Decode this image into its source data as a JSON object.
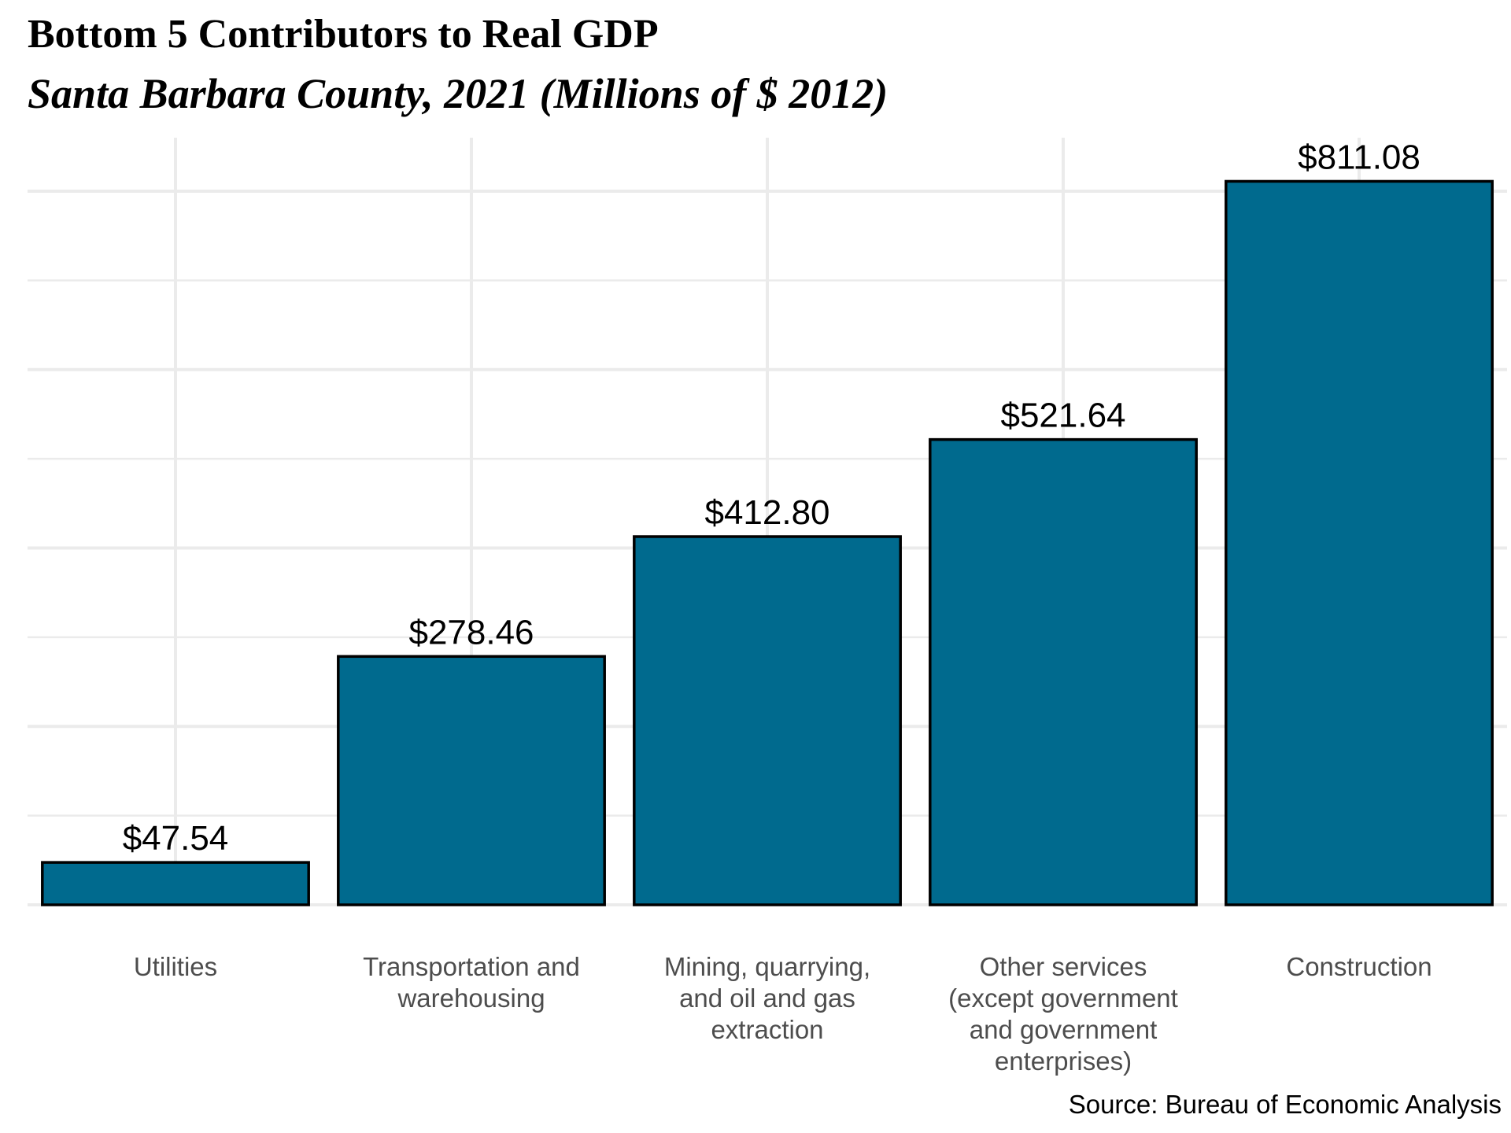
{
  "chart_data": {
    "type": "bar",
    "title": "Bottom 5 Contributors to Real GDP",
    "subtitle": "Santa Barbara County, 2021 (Millions of $ 2012)",
    "caption": "Source: Bureau of Economic Analysis",
    "categories": [
      [
        "Utilities"
      ],
      [
        "Transportation and",
        "warehousing"
      ],
      [
        "Mining, quarrying,",
        "and oil and gas",
        "extraction"
      ],
      [
        "Other services",
        "(except government",
        "and government",
        "enterprises)"
      ],
      [
        "Construction"
      ]
    ],
    "values": [
      47.54,
      278.46,
      412.8,
      521.64,
      811.08
    ],
    "value_labels": [
      "$47.54",
      "$278.46",
      "$412.80",
      "$521.64",
      "$811.08"
    ],
    "ylim": [
      0,
      860
    ],
    "y_axis_labels_shown": false,
    "grid": true,
    "legend": "none",
    "colors": {
      "bar_fill": "#006A8E",
      "bar_outline": "#000000",
      "grid": "#EBEBEB",
      "axis_text": "#4D4D4D",
      "label_text": "#000000"
    }
  }
}
